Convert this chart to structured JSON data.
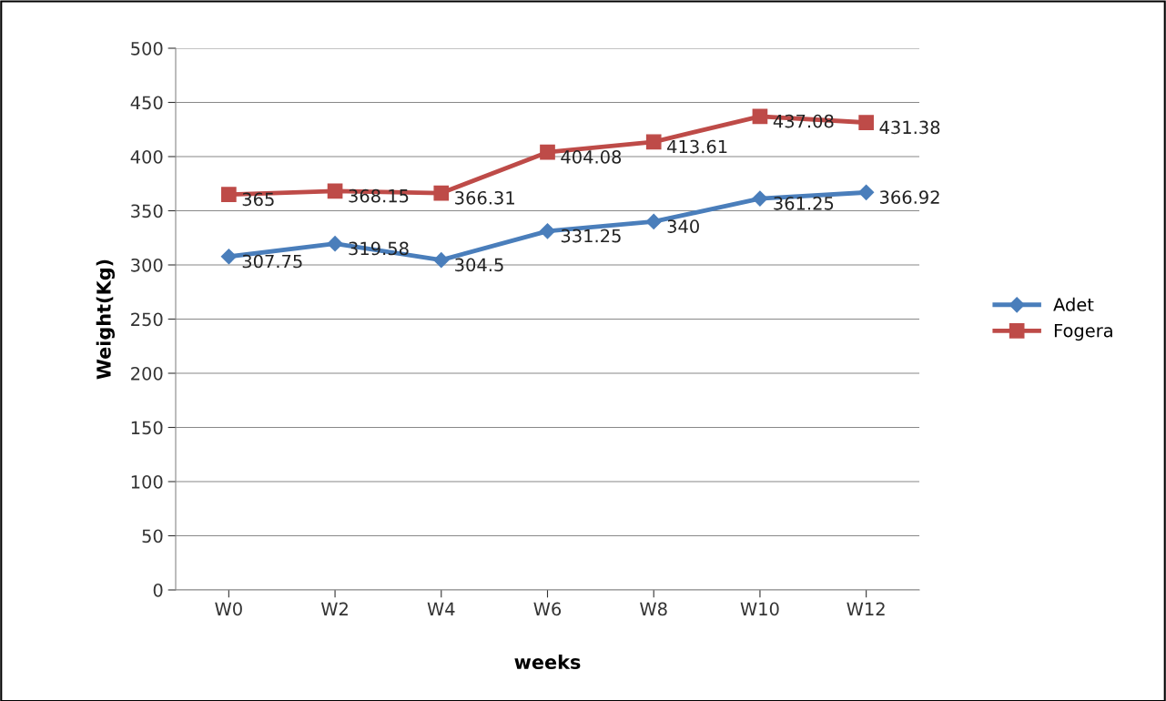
{
  "chart_data": {
    "type": "line",
    "xlabel": "weeks",
    "ylabel": "Weight(Kg)",
    "categories": [
      "W0",
      "W2",
      "W4",
      "W6",
      "W8",
      "W10",
      "W12"
    ],
    "series": [
      {
        "name": "Adet",
        "color": "#4a7ebb",
        "marker": "diamond",
        "values": [
          307.75,
          319.58,
          304.5,
          331.25,
          340,
          361.25,
          366.92
        ]
      },
      {
        "name": "Fogera",
        "color": "#be4b48",
        "marker": "square",
        "values": [
          365,
          368.15,
          366.31,
          404.08,
          413.61,
          437.08,
          431.38
        ]
      }
    ],
    "ylim": [
      0,
      500
    ],
    "yticks": [
      0,
      50,
      100,
      150,
      200,
      250,
      300,
      350,
      400,
      450,
      500
    ],
    "grid": "y",
    "legend": "right",
    "data_labels": true,
    "line_style": "solid"
  }
}
